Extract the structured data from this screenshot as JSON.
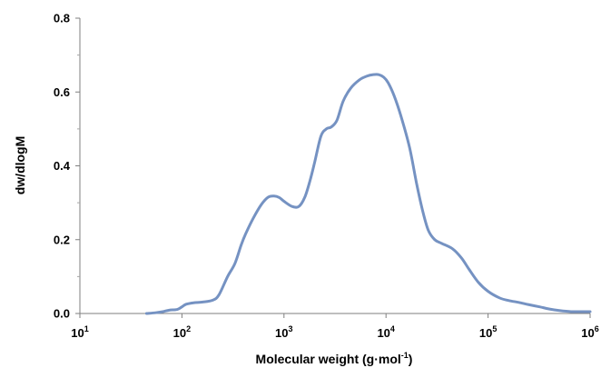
{
  "chart_data": {
    "type": "line",
    "title": "",
    "xlabel": "Molecular weight (g·mol",
    "xlabel_sup": "-1",
    "xlabel_close": ")",
    "ylabel": "dw/dlogM",
    "xscale": "log",
    "xlim": [
      10,
      1000000
    ],
    "ylim": [
      0,
      0.8
    ],
    "grid": false,
    "legend": "none",
    "line_color": "#7592C2",
    "x_ticks": [
      {
        "value": 10,
        "base": "10",
        "exp": "1"
      },
      {
        "value": 100,
        "base": "10",
        "exp": "2"
      },
      {
        "value": 1000,
        "base": "10",
        "exp": "3"
      },
      {
        "value": 10000,
        "base": "10",
        "exp": "4"
      },
      {
        "value": 100000,
        "base": "10",
        "exp": "5"
      },
      {
        "value": 1000000,
        "base": "10",
        "exp": "6"
      }
    ],
    "y_ticks": [
      {
        "value": 0,
        "label": "0.0"
      },
      {
        "value": 0.2,
        "label": "0.2"
      },
      {
        "value": 0.4,
        "label": "0.4"
      },
      {
        "value": 0.6,
        "label": "0.6"
      },
      {
        "value": 0.8,
        "label": "0.8"
      }
    ],
    "series": [
      {
        "x": [
          45,
          55,
          65,
          75,
          90,
          100,
          110,
          130,
          160,
          200,
          230,
          280,
          330,
          380,
          420,
          500,
          600,
          700,
          800,
          900,
          1000,
          1200,
          1400,
          1600,
          1800,
          2000,
          2300,
          2600,
          2900,
          3300,
          3800,
          4500,
          5500,
          6500,
          7500,
          8500,
          9500,
          10500,
          12000,
          14000,
          17000,
          20000,
          23000,
          26000,
          30000,
          35000,
          45000,
          55000,
          65000,
          80000,
          100000,
          130000,
          160000,
          200000,
          250000,
          320000,
          400000,
          500000,
          650000,
          800000,
          1000000
        ],
        "y": [
          0.0,
          0.002,
          0.005,
          0.009,
          0.011,
          0.018,
          0.025,
          0.029,
          0.031,
          0.036,
          0.05,
          0.1,
          0.135,
          0.185,
          0.215,
          0.258,
          0.295,
          0.315,
          0.318,
          0.314,
          0.304,
          0.29,
          0.29,
          0.315,
          0.36,
          0.41,
          0.48,
          0.5,
          0.505,
          0.523,
          0.575,
          0.61,
          0.633,
          0.643,
          0.647,
          0.647,
          0.64,
          0.625,
          0.59,
          0.535,
          0.45,
          0.35,
          0.275,
          0.225,
          0.2,
          0.19,
          0.175,
          0.15,
          0.12,
          0.085,
          0.06,
          0.042,
          0.035,
          0.03,
          0.024,
          0.018,
          0.012,
          0.008,
          0.005,
          0.005,
          0.005
        ]
      }
    ]
  }
}
